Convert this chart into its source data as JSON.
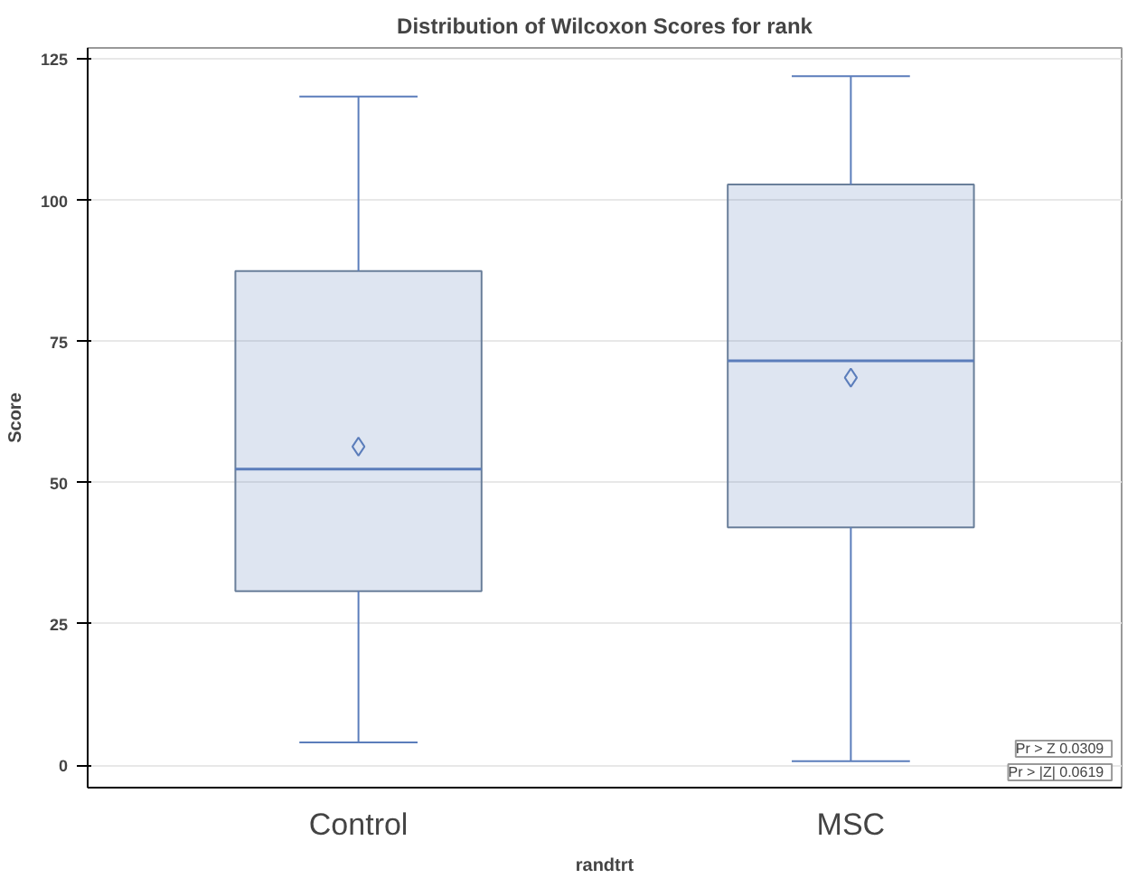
{
  "chart_data": {
    "type": "box",
    "title": "Distribution of Wilcoxon Scores for rank",
    "xlabel": "randtrt",
    "ylabel": "Score",
    "categories": [
      "Control",
      "MSC"
    ],
    "boxes": [
      {
        "low": 4.0,
        "q1": 30.8,
        "median": 52.4,
        "q3": 87.5,
        "high": 118.4,
        "mean": 56.4
      },
      {
        "low": 0.7,
        "q1": 42.1,
        "median": 71.6,
        "q3": 102.8,
        "high": 122,
        "mean": 68.6
      }
    ],
    "color": "#5b7dbb",
    "ylim": [
      -4,
      127
    ],
    "yticks": [
      0,
      25,
      50,
      75,
      100,
      125
    ],
    "grid": "y",
    "annotations": [
      "Pr > Z   0.0309",
      "Pr > |Z|   0.0619"
    ]
  }
}
